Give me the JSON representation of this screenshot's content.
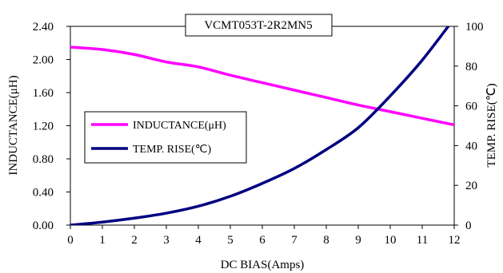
{
  "chart_data": {
    "type": "line",
    "title": "VCMT053T-2R2MN5",
    "xlabel": "DC BIAS(Amps)",
    "ylabel_left": "INDUCTANCE(μH)",
    "ylabel_right": "TEMP. RISE(℃)",
    "x_ticks": [
      "0",
      "1",
      "2",
      "3",
      "4",
      "5",
      "6",
      "7",
      "8",
      "9",
      "10",
      "11",
      "12"
    ],
    "y_left_ticks": [
      "0.00",
      "0.40",
      "0.80",
      "1.20",
      "1.60",
      "2.00",
      "2.40"
    ],
    "y_right_ticks": [
      "0",
      "20",
      "40",
      "60",
      "80",
      "100"
    ],
    "xlim": [
      0,
      12
    ],
    "ylim_left": [
      0,
      2.4
    ],
    "ylim_right": [
      0,
      100
    ],
    "grid": false,
    "legend_position": "center-left",
    "series": [
      {
        "name": "INDUCTANCE(μH)",
        "axis": "left",
        "color": "#FF00FF",
        "x": [
          0,
          1,
          2,
          3,
          4,
          5,
          6,
          7,
          8,
          9,
          10,
          11,
          12
        ],
        "y": [
          2.15,
          2.12,
          2.06,
          1.97,
          1.91,
          1.81,
          1.72,
          1.63,
          1.54,
          1.45,
          1.37,
          1.29,
          1.21
        ]
      },
      {
        "name": "TEMP. RISE(℃)",
        "axis": "right",
        "color": "#000080",
        "x": [
          0,
          1,
          2,
          3,
          4,
          5,
          6,
          7,
          8,
          9,
          10,
          11,
          12
        ],
        "y": [
          0,
          1.5,
          3.5,
          6,
          9.5,
          14.5,
          21,
          28.5,
          38,
          49,
          65,
          83,
          104
        ]
      }
    ]
  }
}
